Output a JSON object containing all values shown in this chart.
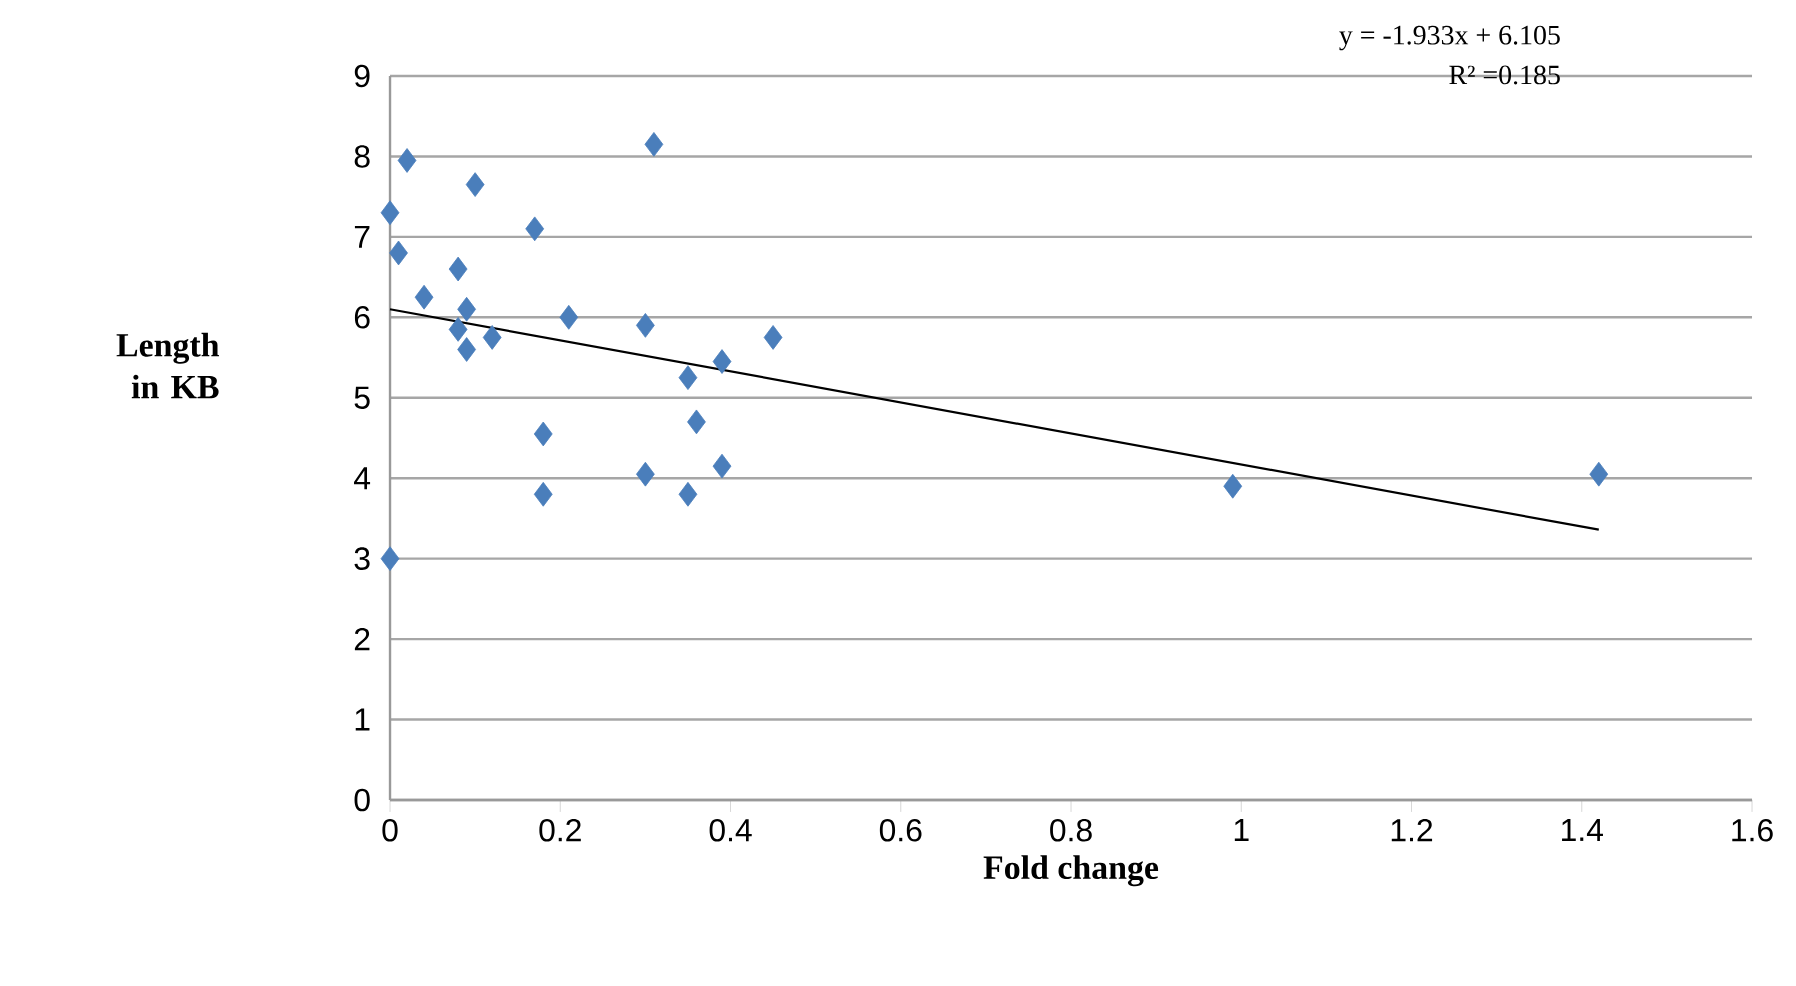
{
  "chart_data": {
    "type": "scatter",
    "xlabel": "Fold change",
    "ylabel": "Length in KB",
    "xlim": [
      0,
      1.6
    ],
    "xticks": [
      0,
      0.2,
      0.4,
      0.6,
      0.8,
      1,
      1.2,
      1.4,
      1.6
    ],
    "ylim": [
      0,
      9
    ],
    "yticks": [
      0,
      1,
      2,
      3,
      4,
      5,
      6,
      7,
      8,
      9
    ],
    "grid": "y",
    "marker": "diamond",
    "annotations": [
      "y = -1.933x + 6.105",
      "R² =0.185"
    ],
    "series": [
      {
        "color": "#4a7ebb",
        "x": [
          0,
          0.02,
          0.1,
          0.01,
          0.17,
          0.31,
          0.08,
          0.04,
          0.09,
          0.08,
          0.09,
          0.12,
          0.21,
          0.3,
          0.45,
          0.35,
          0.39,
          0.36,
          0.18,
          0.18,
          0.3,
          0.35,
          0.39,
          0,
          0.99,
          1.42
        ],
        "values": [
          7.3,
          7.95,
          7.65,
          6.8,
          7.1,
          8.15,
          6.6,
          6.25,
          6.1,
          5.85,
          5.6,
          5.75,
          6.0,
          5.9,
          5.75,
          5.25,
          5.45,
          4.7,
          4.55,
          3.8,
          4.05,
          3.8,
          4.15,
          3.0,
          3.9,
          4.05
        ]
      },
      {
        "type": "line",
        "marker": "none",
        "color": "#000000",
        "x": [
          0,
          1.42
        ],
        "values": [
          6.1,
          3.36
        ]
      }
    ]
  }
}
